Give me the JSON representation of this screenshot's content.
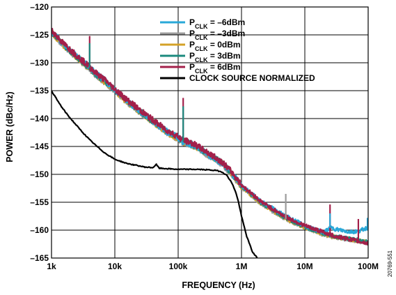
{
  "chart_data": {
    "type": "line",
    "xlabel": "FREQUENCY (Hz)",
    "ylabel": "POWER (dBc/Hz)",
    "x_scale": "log",
    "xlim": [
      1000,
      100000000
    ],
    "ylim": [
      -165,
      -120
    ],
    "x_ticks": [
      {
        "value": 1000,
        "label": "1k"
      },
      {
        "value": 10000,
        "label": "10k"
      },
      {
        "value": 100000,
        "label": "100k"
      },
      {
        "value": 1000000,
        "label": "1M"
      },
      {
        "value": 10000000,
        "label": "10M"
      },
      {
        "value": 100000000,
        "label": "100M"
      }
    ],
    "y_ticks": [
      {
        "value": -120,
        "label": "–120"
      },
      {
        "value": -125,
        "label": "–125"
      },
      {
        "value": -130,
        "label": "–130"
      },
      {
        "value": -135,
        "label": "–135"
      },
      {
        "value": -140,
        "label": "–140"
      },
      {
        "value": -145,
        "label": "–145"
      },
      {
        "value": -150,
        "label": "–150"
      },
      {
        "value": -155,
        "label": "–155"
      },
      {
        "value": -160,
        "label": "–160"
      },
      {
        "value": -165,
        "label": "–165"
      }
    ],
    "grid": true,
    "legend_position": "top-right",
    "series": [
      {
        "name": "P_CLK = –6dBm",
        "label_main": "P",
        "label_sub": "CLK",
        "label_rest": " = –6dBm",
        "color": "#29a8d8",
        "x": [
          1000,
          1500,
          2000,
          3000,
          4000,
          5000,
          7000,
          10000,
          15000,
          20000,
          30000,
          50000,
          70000,
          100000,
          120000,
          150000,
          200000,
          300000,
          500000,
          700000,
          1000000,
          1500000,
          2000000,
          3000000,
          5000000,
          7000000,
          10000000,
          15000000,
          20000000,
          25000000,
          30000000,
          50000000,
          70000000,
          100000000
        ],
        "y": [
          -124.3,
          -126.5,
          -127.8,
          -129.6,
          -130.8,
          -131.9,
          -133.2,
          -134.8,
          -136.7,
          -137.8,
          -139.4,
          -141.3,
          -142.5,
          -143.4,
          -144.2,
          -144.5,
          -145.2,
          -146.5,
          -148.0,
          -149.8,
          -152.0,
          -153.6,
          -154.8,
          -156.0,
          -157.5,
          -158.3,
          -159.2,
          -160.0,
          -160.4,
          -159.6,
          -159.8,
          -160.3,
          -160.2,
          -159.5
        ]
      },
      {
        "name": "P_CLK = –3dBm",
        "label_main": "P",
        "label_sub": "CLK",
        "label_rest": " = –3dBm",
        "color": "#9b9b9b",
        "x": [
          1000,
          1500,
          2000,
          3000,
          4000,
          5000,
          7000,
          10000,
          15000,
          20000,
          30000,
          50000,
          70000,
          100000,
          120000,
          150000,
          200000,
          300000,
          500000,
          700000,
          1000000,
          1500000,
          2000000,
          3000000,
          5000000,
          7000000,
          10000000,
          15000000,
          20000000,
          25000000,
          30000000,
          50000000,
          70000000,
          100000000
        ],
        "y": [
          -124.6,
          -126.8,
          -128.1,
          -129.9,
          -131.1,
          -132.2,
          -133.5,
          -135.1,
          -136.9,
          -138.0,
          -139.6,
          -141.5,
          -142.7,
          -143.6,
          -144.3,
          -144.6,
          -145.3,
          -146.6,
          -148.2,
          -150.0,
          -152.3,
          -154.0,
          -155.2,
          -156.5,
          -158.0,
          -158.8,
          -159.6,
          -160.3,
          -160.8,
          -161.1,
          -161.3,
          -161.7,
          -162.0,
          -162.3
        ]
      },
      {
        "name": "P_CLK = 0dBm",
        "label_main": "P",
        "label_sub": "CLK",
        "label_rest": " = 0dBm",
        "color": "#d4a227",
        "x": [
          1000,
          1500,
          2000,
          3000,
          4000,
          5000,
          7000,
          10000,
          15000,
          20000,
          30000,
          50000,
          70000,
          100000,
          120000,
          150000,
          200000,
          300000,
          500000,
          700000,
          1000000,
          1500000,
          2000000,
          3000000,
          5000000,
          7000000,
          10000000,
          15000000,
          20000000,
          25000000,
          30000000,
          50000000,
          70000000,
          100000000
        ],
        "y": [
          -124.5,
          -126.7,
          -128.0,
          -129.8,
          -131.0,
          -132.1,
          -133.4,
          -135.0,
          -136.8,
          -137.9,
          -139.5,
          -141.4,
          -142.6,
          -143.5,
          -144.2,
          -144.5,
          -145.2,
          -146.5,
          -148.1,
          -149.9,
          -152.2,
          -153.9,
          -155.1,
          -156.4,
          -157.9,
          -158.7,
          -159.5,
          -160.2,
          -160.7,
          -161.0,
          -161.2,
          -161.6,
          -161.9,
          -162.2
        ]
      },
      {
        "name": "P_CLK = 3dBm",
        "label_main": "P",
        "label_sub": "CLK",
        "label_rest": " = 3dBm",
        "color": "#1b8a7e",
        "x": [
          1000,
          1500,
          2000,
          3000,
          4000,
          5000,
          7000,
          10000,
          15000,
          20000,
          30000,
          50000,
          70000,
          100000,
          120000,
          150000,
          200000,
          300000,
          500000,
          700000,
          1000000,
          1500000,
          2000000,
          3000000,
          5000000,
          7000000,
          10000000,
          15000000,
          20000000,
          25000000,
          30000000,
          50000000,
          70000000,
          100000000
        ],
        "y": [
          -124.4,
          -126.6,
          -127.9,
          -129.7,
          -130.9,
          -132.0,
          -133.3,
          -134.9,
          -136.7,
          -137.8,
          -139.4,
          -141.3,
          -142.5,
          -143.4,
          -144.1,
          -144.4,
          -145.1,
          -146.4,
          -148.0,
          -149.8,
          -152.1,
          -153.8,
          -155.0,
          -156.3,
          -157.8,
          -158.6,
          -159.4,
          -160.1,
          -160.6,
          -160.9,
          -161.1,
          -161.5,
          -161.8,
          -162.1
        ]
      },
      {
        "name": "P_CLK = 6dBm",
        "label_main": "P",
        "label_sub": "CLK",
        "label_rest": " = 6dBm",
        "color": "#a3204a",
        "x": [
          1000,
          1500,
          2000,
          3000,
          4000,
          5000,
          7000,
          10000,
          15000,
          20000,
          30000,
          50000,
          70000,
          100000,
          120000,
          150000,
          200000,
          300000,
          500000,
          700000,
          1000000,
          1500000,
          2000000,
          3000000,
          5000000,
          7000000,
          10000000,
          15000000,
          20000000,
          25000000,
          30000000,
          50000000,
          70000000,
          100000000
        ],
        "y": [
          -124.2,
          -126.4,
          -127.7,
          -129.5,
          -130.7,
          -131.8,
          -133.1,
          -134.7,
          -136.5,
          -137.6,
          -139.2,
          -141.1,
          -142.3,
          -143.2,
          -143.9,
          -144.2,
          -144.9,
          -146.2,
          -147.8,
          -149.6,
          -151.9,
          -153.6,
          -154.8,
          -156.1,
          -157.6,
          -158.4,
          -159.2,
          -159.9,
          -160.4,
          -160.8,
          -161.1,
          -161.6,
          -162.0,
          -162.4
        ]
      },
      {
        "name": "CLOCK SOURCE NORMALIZED",
        "label_main": "CLOCK SOURCE NORMALIZED",
        "label_sub": "",
        "label_rest": "",
        "color": "#000000",
        "x": [
          1000,
          1200,
          1500,
          2000,
          3000,
          4000,
          5000,
          7000,
          10000,
          15000,
          20000,
          30000,
          40000,
          45000,
          50000,
          70000,
          100000,
          150000,
          200000,
          300000,
          400000,
          500000,
          600000,
          700000,
          800000,
          900000,
          1000000,
          1200000,
          1500000,
          1800000
        ],
        "y": [
          -135.0,
          -136.5,
          -138.2,
          -140.0,
          -142.3,
          -143.8,
          -144.8,
          -146.2,
          -147.3,
          -148.0,
          -148.3,
          -148.7,
          -148.8,
          -148.2,
          -148.9,
          -149.0,
          -149.1,
          -149.1,
          -149.1,
          -149.2,
          -149.3,
          -149.6,
          -150.3,
          -151.5,
          -153.0,
          -155.0,
          -157.5,
          -161.0,
          -164.0,
          -165.0
        ]
      }
    ],
    "spurs": [
      {
        "x": 4000,
        "y": -125.2,
        "series": 4
      },
      {
        "x": 4000,
        "y": -126.5,
        "series": 3
      },
      {
        "x": 120000,
        "y": -136.3,
        "series": 4
      },
      {
        "x": 120000,
        "y": -137.8,
        "series": 3
      },
      {
        "x": 5000000,
        "y": -153.5,
        "series": 1
      },
      {
        "x": 25000000,
        "y": -155.4,
        "series": 4
      },
      {
        "x": 25000000,
        "y": -157.0,
        "series": 0
      },
      {
        "x": 70000000,
        "y": -158.0,
        "series": 4
      },
      {
        "x": 100000000,
        "y": -157.8,
        "series": 0
      }
    ]
  },
  "figure_id": "20769-551"
}
